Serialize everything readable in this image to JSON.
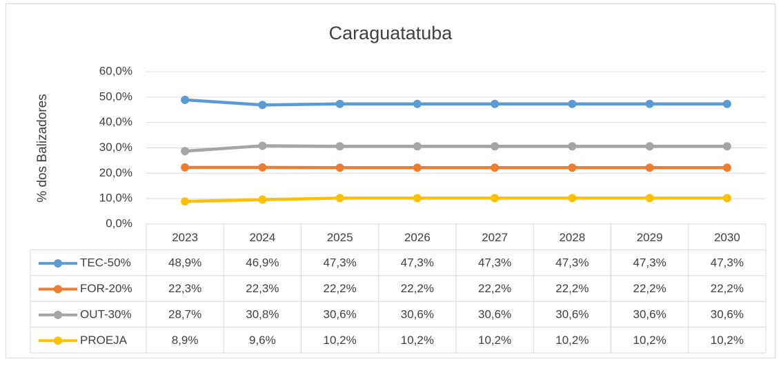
{
  "chart_data": {
    "type": "line",
    "title": "Caraguatatuba",
    "y_label": "% dos Balizadores",
    "categories": [
      "2023",
      "2024",
      "2025",
      "2026",
      "2027",
      "2028",
      "2029",
      "2030"
    ],
    "series": [
      {
        "name": "TEC-50%",
        "color": "#5B9BD5",
        "values": [
          48.9,
          46.9,
          47.3,
          47.3,
          47.3,
          47.3,
          47.3,
          47.3
        ],
        "value_labels": [
          "48,9%",
          "46,9%",
          "47,3%",
          "47,3%",
          "47,3%",
          "47,3%",
          "47,3%",
          "47,3%"
        ]
      },
      {
        "name": "FOR-20%",
        "color": "#ED7D31",
        "values": [
          22.3,
          22.3,
          22.2,
          22.2,
          22.2,
          22.2,
          22.2,
          22.2
        ],
        "value_labels": [
          "22,3%",
          "22,3%",
          "22,2%",
          "22,2%",
          "22,2%",
          "22,2%",
          "22,2%",
          "22,2%"
        ]
      },
      {
        "name": "OUT-30%",
        "color": "#A5A5A5",
        "values": [
          28.7,
          30.8,
          30.6,
          30.6,
          30.6,
          30.6,
          30.6,
          30.6
        ],
        "value_labels": [
          "28,7%",
          "30,8%",
          "30,6%",
          "30,6%",
          "30,6%",
          "30,6%",
          "30,6%",
          "30,6%"
        ]
      },
      {
        "name": "PROEJA",
        "color": "#FFC000",
        "values": [
          8.9,
          9.6,
          10.2,
          10.2,
          10.2,
          10.2,
          10.2,
          10.2
        ],
        "value_labels": [
          "8,9%",
          "9,6%",
          "10,2%",
          "10,2%",
          "10,2%",
          "10,2%",
          "10,2%",
          "10,2%"
        ]
      }
    ],
    "ylim": [
      0,
      60
    ],
    "yticks": [
      {
        "value": 0,
        "label": "0,0%"
      },
      {
        "value": 10,
        "label": "10,0%"
      },
      {
        "value": 20,
        "label": "20,0%"
      },
      {
        "value": 30,
        "label": "30,0%"
      },
      {
        "value": 40,
        "label": "40,0%"
      },
      {
        "value": 50,
        "label": "50,0%"
      },
      {
        "value": 60,
        "label": "60,0%"
      }
    ],
    "grid": true
  }
}
